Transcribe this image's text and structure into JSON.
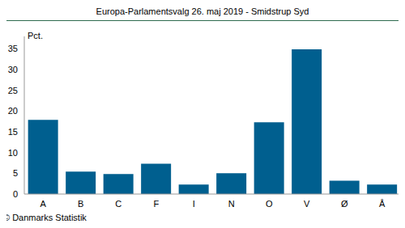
{
  "chart_data": {
    "type": "bar",
    "title": "Europa-Parlamentsvalg 26. maj 2019 - Smidstrup Syd",
    "y_label": "Pct.",
    "annotations": [
      "© Danmarks Statistik"
    ],
    "categories": [
      "A",
      "B",
      "C",
      "F",
      "I",
      "N",
      "O",
      "V",
      "Ø",
      "Å"
    ],
    "values": [
      17.9,
      5.4,
      4.8,
      7.3,
      2.3,
      5.0,
      17.3,
      34.9,
      3.2,
      2.3
    ],
    "color": "#005f8f",
    "ylim": [
      0,
      38
    ],
    "yticks": [
      0,
      5,
      10,
      15,
      20,
      25,
      30,
      35
    ],
    "grid": false
  }
}
